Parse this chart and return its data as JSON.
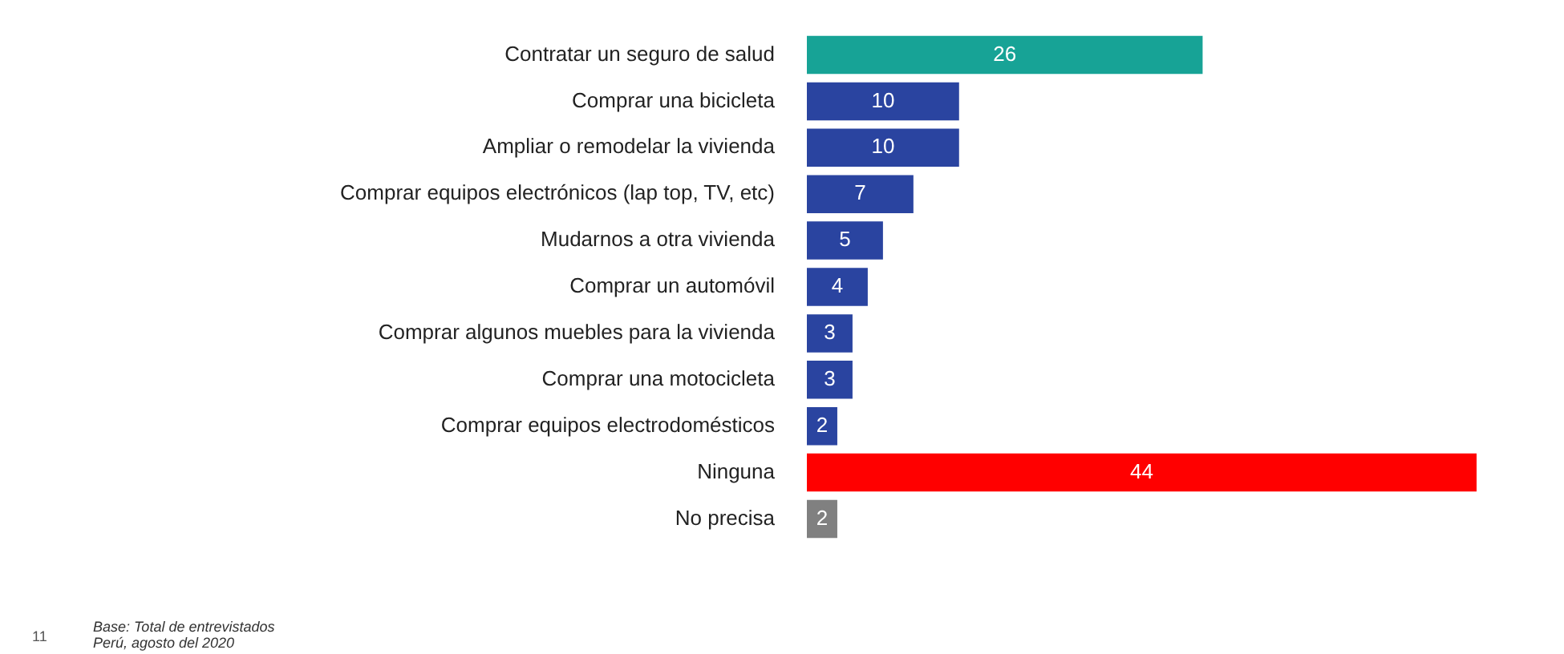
{
  "chart_data": {
    "type": "bar",
    "orientation": "horizontal",
    "categories": [
      "Contratar un seguro de salud",
      "Comprar una bicicleta",
      "Ampliar o remodelar la vivienda",
      "Comprar equipos electrónicos (lap top, TV, etc)",
      "Mudarnos a otra vivienda",
      "Comprar un automóvil",
      "Comprar algunos muebles para la vivienda",
      "Comprar una motocicleta",
      "Comprar equipos electrodomésticos",
      "Ninguna",
      "No precisa"
    ],
    "values": [
      26,
      10,
      10,
      7,
      5,
      4,
      3,
      3,
      2,
      44,
      2
    ],
    "colors": [
      "#17a396",
      "#2a44a0",
      "#2a44a0",
      "#2a44a0",
      "#2a44a0",
      "#2a44a0",
      "#2a44a0",
      "#2a44a0",
      "#2a44a0",
      "#ff0000",
      "#808080"
    ],
    "data_labels": true,
    "legend": false,
    "tick_labels": "y",
    "annotations": [
      "11",
      "Base: Total de entrevistados",
      "Perú, agosto del 2020"
    ]
  }
}
